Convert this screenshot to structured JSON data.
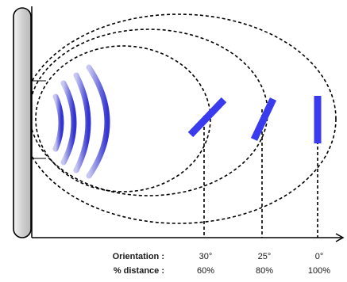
{
  "labels": {
    "orientation": "Orientation :",
    "distance": "% distance :"
  },
  "positions": [
    {
      "orientation": "30°",
      "distance": "60%"
    },
    {
      "orientation": "25°",
      "distance": "80%"
    },
    {
      "orientation": "0°",
      "distance": "100%"
    }
  ],
  "colors": {
    "reflector": "#3a3aee",
    "wave": "#4a4ad8",
    "coverage_outer": "#d4d4d4",
    "coverage_mid": "#e4e4e4",
    "coverage_inner": "#ffffff",
    "wall": "#d8d8d8"
  }
}
